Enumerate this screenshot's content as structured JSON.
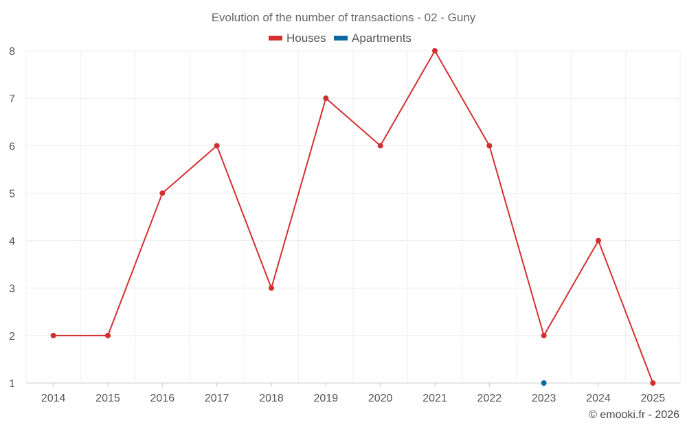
{
  "chart_data": {
    "type": "line",
    "title": "Evolution of the number of transactions - 02 - Guny",
    "categories": [
      "2014",
      "2015",
      "2016",
      "2017",
      "2018",
      "2019",
      "2020",
      "2021",
      "2022",
      "2023",
      "2024",
      "2025"
    ],
    "ylim": [
      1,
      8
    ],
    "yticks": [
      "1",
      "2",
      "3",
      "4",
      "5",
      "6",
      "7",
      "8"
    ],
    "grid": true,
    "legend_position": "top-center",
    "series": [
      {
        "name": "Houses",
        "color": "#d32f2f",
        "values": [
          2,
          2,
          5,
          6,
          3,
          7,
          6,
          8,
          6,
          2,
          4,
          1
        ]
      },
      {
        "name": "Apartments",
        "color": "#0a6aa1",
        "values": [
          null,
          null,
          null,
          null,
          null,
          null,
          null,
          null,
          null,
          1,
          null,
          null
        ]
      }
    ],
    "credit": "© emooki.fr - 2026"
  }
}
